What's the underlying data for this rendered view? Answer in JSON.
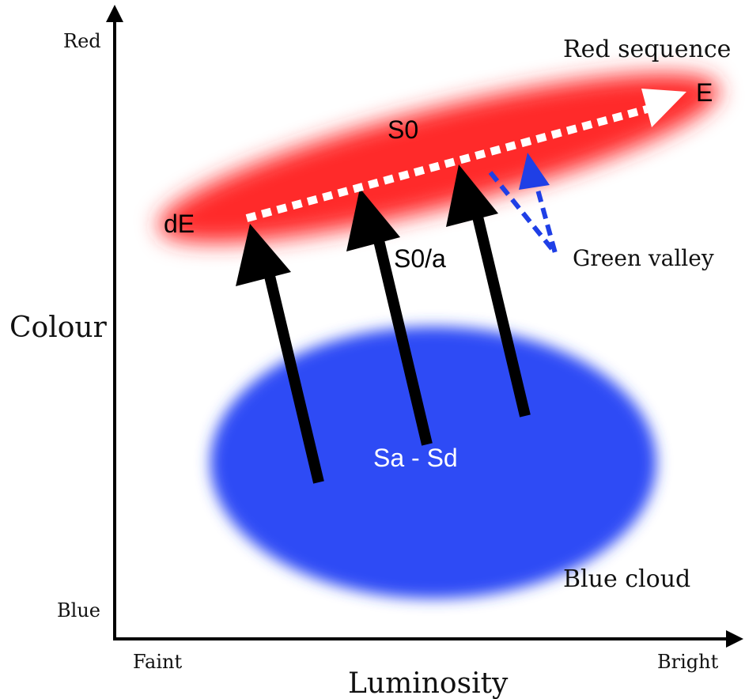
{
  "axes": {
    "y_title": "Colour",
    "y_top": "Red",
    "y_bottom": "Blue",
    "x_title": "Luminosity",
    "x_left": "Faint",
    "x_right": "Bright"
  },
  "regions": {
    "red_sequence": "Red sequence",
    "green_valley": "Green valley",
    "blue_cloud": "Blue cloud"
  },
  "types": {
    "dE": "dE",
    "E": "E",
    "S0": "S0",
    "S0a": "S0/a",
    "spirals": "Sa - Sd"
  },
  "colors": {
    "red_sequence": "#ff2a2a",
    "blue_cloud": "#2f4cf5",
    "green_valley_arrow": "#1f3fe6",
    "evolution_arrow": "#000000",
    "sequence_arrow": "#ffffff"
  }
}
